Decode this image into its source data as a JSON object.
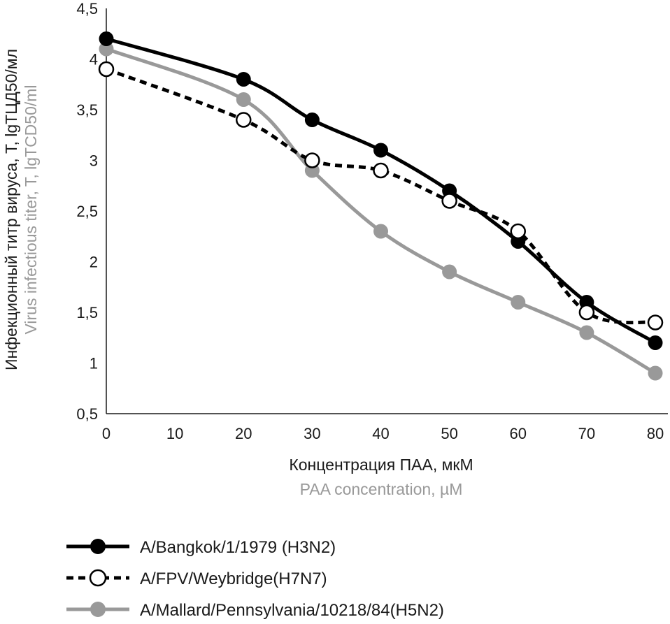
{
  "chart_data": {
    "type": "line",
    "x": [
      0,
      20,
      30,
      40,
      50,
      60,
      70,
      80
    ],
    "xticks": [
      "0",
      "10",
      "20",
      "30",
      "40",
      "50",
      "60",
      "70",
      "80"
    ],
    "yticks": [
      "0,5",
      "1",
      "1,5",
      "2",
      "2,5",
      "3",
      "3,5",
      "4",
      "4,5"
    ],
    "xlim": [
      0,
      80
    ],
    "ylim": [
      0.5,
      4.5
    ],
    "xlabel": "Концентрация ПАА, мкМ",
    "xlabel_en": "PAA concentration, µM",
    "ylabel": "Инфекционный титр вируса, Т, lgТЦД50/мл",
    "ylabel_en": "Virus infectious titer, T, lgTCD50/ml",
    "legend_position": "bottom",
    "series": [
      {
        "name": "A/Bangkok/1/1979 (H3N2)",
        "color": "#000000",
        "style": "solid",
        "marker": "filled",
        "values": [
          4.2,
          3.8,
          3.4,
          3.1,
          2.7,
          2.2,
          1.6,
          1.2
        ]
      },
      {
        "name": "A/FPV/Weybridge(H7N7)",
        "color": "#000000",
        "style": "dashed",
        "marker": "open",
        "values": [
          3.9,
          3.4,
          3.0,
          2.9,
          2.6,
          2.3,
          1.5,
          1.4
        ]
      },
      {
        "name": "A/Mallard/Pennsylvania/10218/84(H5N2)",
        "color": "#999999",
        "style": "solid",
        "marker": "filled",
        "values": [
          4.1,
          3.6,
          2.9,
          2.3,
          1.9,
          1.6,
          1.3,
          0.9
        ]
      }
    ]
  }
}
